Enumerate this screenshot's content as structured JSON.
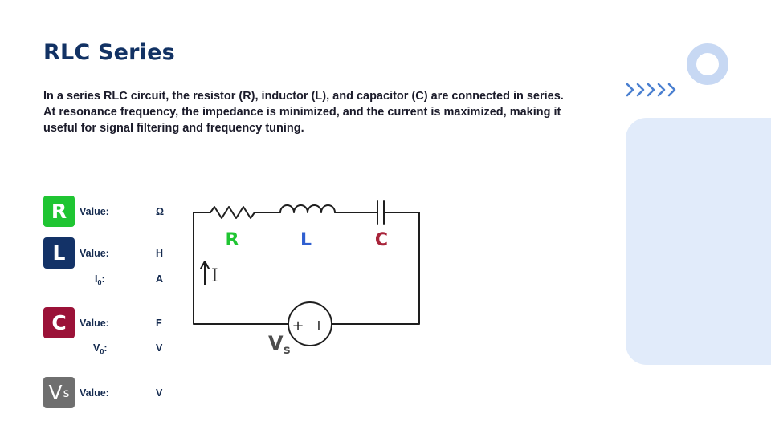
{
  "slide": {
    "title": "RLC Series",
    "description_lines": [
      "In a series RLC circuit, the resistor (R), inductor (L), and capacitor (C) are connected in series.",
      "At resonance frequency, the impedance is minimized, and the current is maximized, making it",
      "useful for signal filtering and frequency tuning."
    ]
  },
  "components": {
    "resistor": {
      "badge": "R",
      "value_label": "Value:",
      "unit": "Ω",
      "color": "#1fc532"
    },
    "inductor": {
      "badge": "L",
      "value_label": "Value:",
      "unit": "H",
      "current_label": "I",
      "current_sub": "0",
      "current_unit": "A",
      "color": "#133267"
    },
    "capacitor": {
      "badge": "C",
      "value_label": "Value:",
      "unit": "F",
      "voltage_label": "V",
      "voltage_sub": "0",
      "voltage_unit": "V",
      "color": "#9b1238"
    },
    "source": {
      "badge": "V",
      "badge_sub": "s",
      "value_label": "Value:",
      "unit": "V",
      "color": "#6f6f6f"
    }
  },
  "circuit": {
    "label_r": "R",
    "label_l": "L",
    "label_c": "C",
    "current_arrow_label": "I",
    "source_label": "V",
    "source_label_sub": "s",
    "source_plus": "+",
    "source_minus": "I"
  },
  "decor": {
    "accent": "#c7d8f3",
    "panel": "#e1ebfa",
    "arrows_color": "#4a7fd0"
  }
}
